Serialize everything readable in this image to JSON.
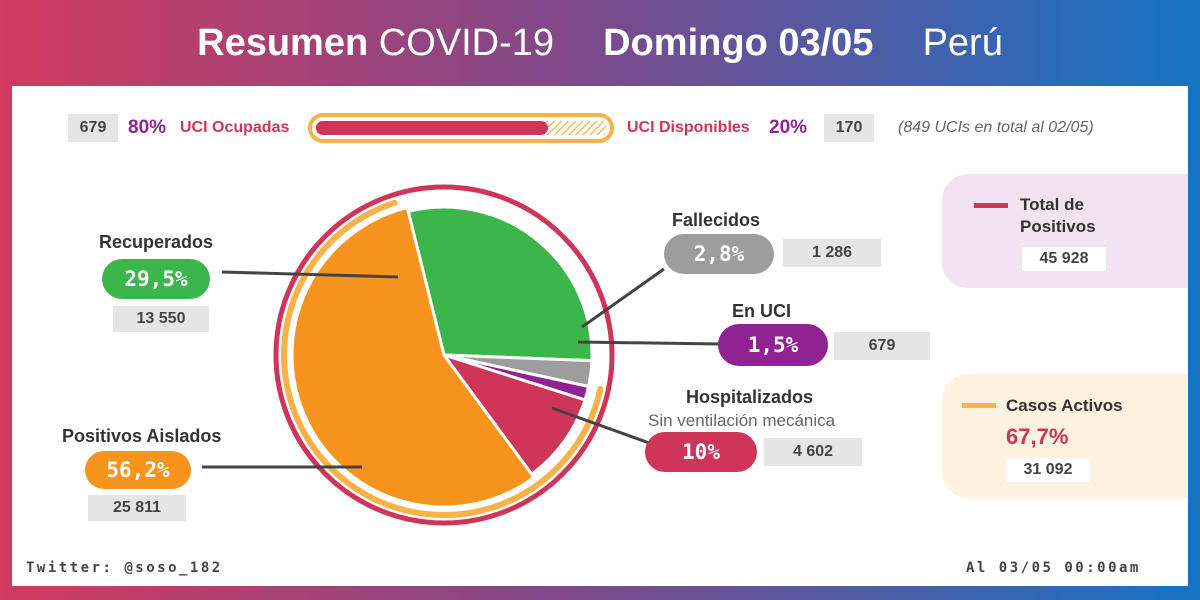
{
  "header": {
    "title_bold": "Resumen",
    "title_light": "COVID-19",
    "date": "Domingo 03/05",
    "country": "Perú"
  },
  "uci_bar": {
    "occupied_count": "679",
    "occupied_pct": "80%",
    "occupied_label": "UCI Ocupadas",
    "occupied_fraction": 0.8,
    "available_label": "UCI Disponibles",
    "available_pct": "20%",
    "available_count": "170",
    "note": "(849 UCIs en total al 02/05)"
  },
  "chart_data": {
    "type": "pie",
    "slices": [
      {
        "key": "recuperados",
        "label": "Recuperados",
        "value": 29.5,
        "pct_text": "29,5%",
        "count_text": "13 550",
        "sublabel": "",
        "color": "#3cb54a"
      },
      {
        "key": "fallecidos",
        "label": "Fallecidos",
        "value": 2.8,
        "pct_text": "2,8%",
        "count_text": "1 286",
        "sublabel": "",
        "color": "#9d9d9d"
      },
      {
        "key": "en_uci",
        "label": "En UCI",
        "value": 1.5,
        "pct_text": "1,5%",
        "count_text": "679",
        "sublabel": "",
        "color": "#8e2391"
      },
      {
        "key": "hospitalizados",
        "label": "Hospitalizados",
        "value": 10,
        "pct_text": "10%",
        "count_text": "4 602",
        "sublabel": "Sin ventilación mecánica",
        "color": "#cf3559"
      },
      {
        "key": "aislados",
        "label": "Positivos Aislados",
        "value": 56.2,
        "pct_text": "56,2%",
        "count_text": "25 811",
        "sublabel": "",
        "color": "#f7941e"
      }
    ]
  },
  "summary": {
    "total_label": "Total de Positivos",
    "total_value": "45 928",
    "active_label": "Casos Activos",
    "active_pct": "67,7%",
    "active_value": "31 092"
  },
  "footer": {
    "credit": "Twitter: @soso_182",
    "timestamp": "Al 03/05 00:00am"
  },
  "colors": {
    "crimson": "#cf3559",
    "orange": "#f7941e",
    "green": "#3cb54a",
    "gray": "#9d9d9d",
    "purple": "#8e2391"
  }
}
